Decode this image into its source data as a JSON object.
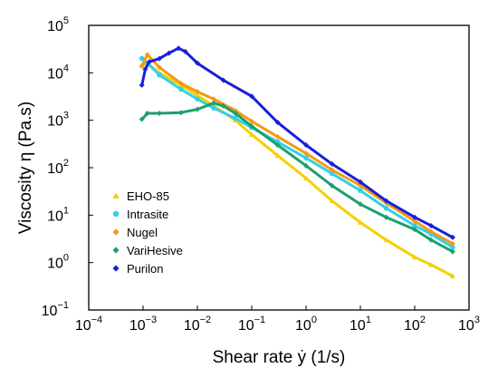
{
  "chart_data": {
    "type": "line",
    "xscale": "log",
    "yscale": "log",
    "xlim": [
      0.0001,
      1000
    ],
    "ylim": [
      0.1,
      100000
    ],
    "xlabel": "Shear rate ẏ (1/s)",
    "ylabel": "Viscosity η (Pa.s)",
    "grid": false,
    "legend_position": "bottom-left",
    "x_ticks": [
      {
        "base": "10",
        "exp": "−4",
        "value": 0.0001
      },
      {
        "base": "10",
        "exp": "−3",
        "value": 0.001
      },
      {
        "base": "10",
        "exp": "−2",
        "value": 0.01
      },
      {
        "base": "10",
        "exp": "−1",
        "value": 0.1
      },
      {
        "base": "10",
        "exp": "0",
        "value": 1
      },
      {
        "base": "10",
        "exp": "1",
        "value": 10
      },
      {
        "base": "10",
        "exp": "2",
        "value": 100
      },
      {
        "base": "10",
        "exp": "3",
        "value": 1000
      }
    ],
    "y_ticks": [
      {
        "base": "10",
        "exp": "−1",
        "value": 0.1
      },
      {
        "base": "10",
        "exp": "0",
        "value": 1
      },
      {
        "base": "10",
        "exp": "1",
        "value": 10
      },
      {
        "base": "10",
        "exp": "2",
        "value": 100
      },
      {
        "base": "10",
        "exp": "3",
        "value": 1000
      },
      {
        "base": "10",
        "exp": "4",
        "value": 10000
      },
      {
        "base": "10",
        "exp": "5",
        "value": 100000
      }
    ],
    "series": [
      {
        "name": "EHO-85",
        "color": "#f5d000",
        "marker": "triangle",
        "x": [
          0.00095,
          0.0012,
          0.002,
          0.005,
          0.01,
          0.02,
          0.05,
          0.1,
          0.3,
          1,
          3,
          10,
          30,
          100,
          200,
          500
        ],
        "y": [
          14000,
          16000,
          10000,
          5500,
          3300,
          2000,
          1000,
          500,
          180,
          60,
          20,
          7,
          3,
          1.3,
          0.9,
          0.52
        ]
      },
      {
        "name": "Intrasite",
        "color": "#2fd0ec",
        "marker": "circle",
        "x": [
          0.00095,
          0.0012,
          0.002,
          0.005,
          0.01,
          0.02,
          0.05,
          0.1,
          0.3,
          1,
          3,
          10,
          30,
          100,
          200,
          500
        ],
        "y": [
          20000,
          16000,
          9000,
          4500,
          2800,
          1800,
          1100,
          700,
          350,
          160,
          75,
          33,
          14,
          6,
          4,
          2.1
        ]
      },
      {
        "name": "Nugel",
        "color": "#f59a10",
        "marker": "diamond",
        "x": [
          0.00095,
          0.0012,
          0.002,
          0.005,
          0.01,
          0.02,
          0.05,
          0.1,
          0.3,
          1,
          3,
          10,
          30,
          100,
          200,
          500
        ],
        "y": [
          14000,
          24000,
          13000,
          6000,
          4000,
          2800,
          1600,
          950,
          450,
          200,
          90,
          42,
          18,
          7.5,
          4.5,
          2.5
        ]
      },
      {
        "name": "VariHesive",
        "color": "#1f9e6e",
        "marker": "diamond",
        "x": [
          0.00095,
          0.0012,
          0.002,
          0.005,
          0.01,
          0.02,
          0.03,
          0.05,
          0.1,
          0.3,
          1,
          3,
          10,
          30,
          100,
          200,
          500
        ],
        "y": [
          1050,
          1400,
          1400,
          1450,
          1700,
          2300,
          2000,
          1400,
          750,
          300,
          110,
          42,
          17,
          9,
          5,
          3,
          1.7
        ]
      },
      {
        "name": "Purilon",
        "color": "#1a1fd8",
        "marker": "diamond",
        "x": [
          0.00095,
          0.0011,
          0.0013,
          0.002,
          0.003,
          0.0045,
          0.006,
          0.01,
          0.03,
          0.1,
          0.3,
          1,
          3,
          10,
          30,
          100,
          200,
          500
        ],
        "y": [
          5500,
          12000,
          17000,
          20000,
          26000,
          33000,
          28000,
          16000,
          7000,
          3200,
          900,
          300,
          120,
          50,
          20,
          9,
          6,
          3.4
        ]
      }
    ]
  }
}
